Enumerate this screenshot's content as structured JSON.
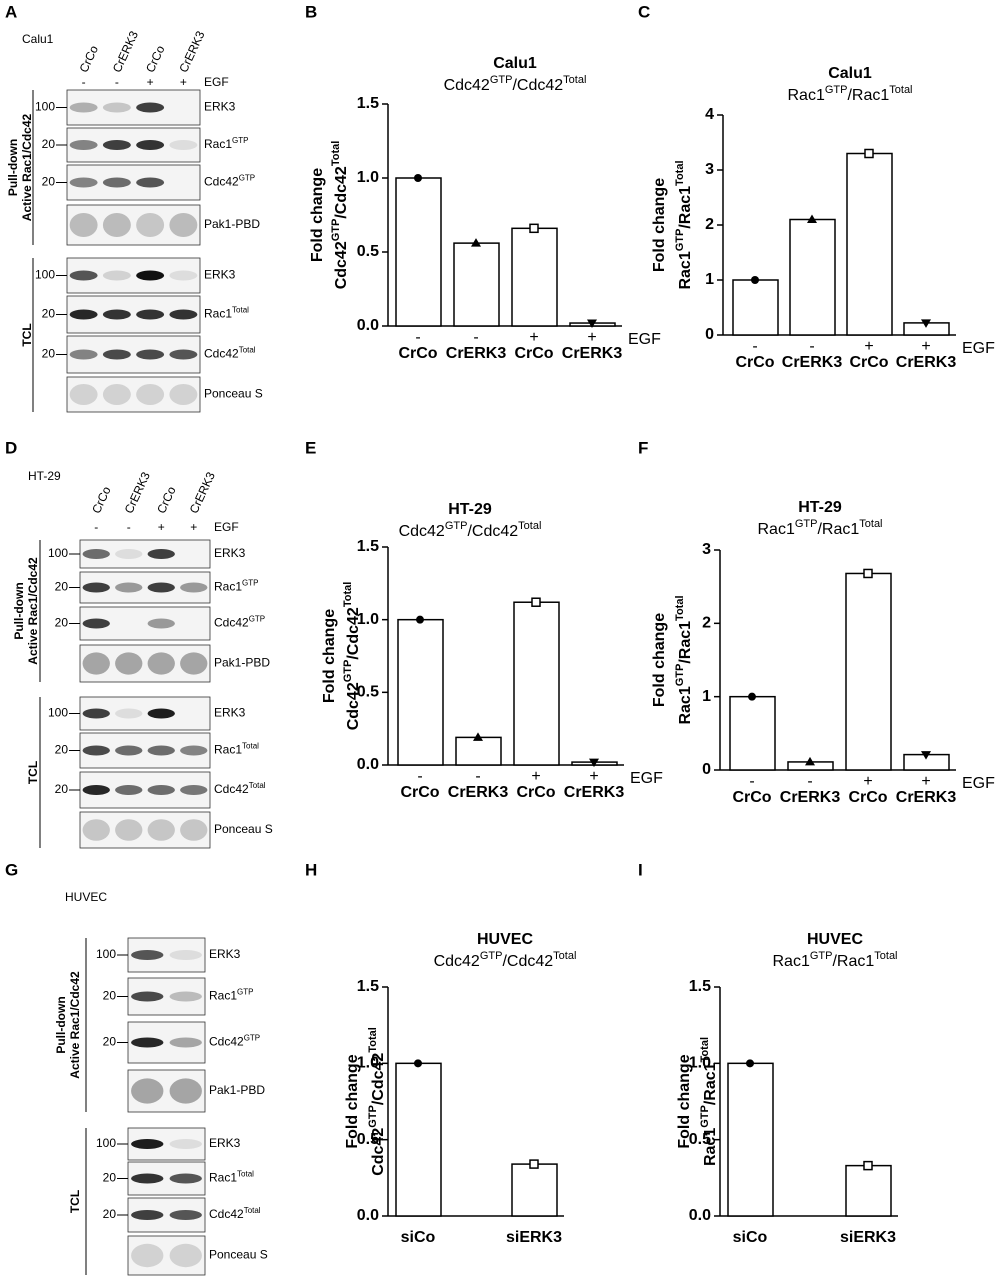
{
  "blots": [
    {
      "panel": "A",
      "cell_line": "Calu1",
      "lanes": [
        "CrCo",
        "CrERK3",
        "CrCo",
        "CrERK3"
      ],
      "signs": [
        "-",
        "-",
        "+",
        "+"
      ],
      "treatment": "EGF",
      "groups": [
        {
          "label": [
            "Pull-down",
            "Active Rac1/Cdc42"
          ]
        },
        {
          "label": [
            "TCL"
          ]
        }
      ],
      "rows": [
        {
          "label": [
            "ERK3"
          ],
          "mw": 100
        },
        {
          "label": [
            "Rac1",
            "GTP"
          ],
          "mw": 20
        },
        {
          "label": [
            "Cdc42",
            "GTP"
          ],
          "mw": 20
        },
        {
          "label": [
            "Pak1-PBD"
          ]
        },
        {
          "label": [
            "ERK3"
          ],
          "mw": 100
        },
        {
          "label": [
            "Rac1",
            "Total"
          ],
          "mw": 20
        },
        {
          "label": [
            "Cdc42",
            "Total"
          ],
          "mw": 20
        },
        {
          "label": [
            "Ponceau S"
          ]
        }
      ]
    },
    {
      "panel": "D",
      "cell_line": "HT-29",
      "lanes": [
        "CrCo",
        "CrERK3",
        "CrCo",
        "CrERK3"
      ],
      "signs": [
        "-",
        "-",
        "+",
        "+"
      ],
      "treatment": "EGF",
      "groups": [
        {
          "label": [
            "Pull-down",
            "Active Rac1/Cdc42"
          ]
        },
        {
          "label": [
            "TCL"
          ]
        }
      ],
      "rows": [
        {
          "label": [
            "ERK3"
          ],
          "mw": 100
        },
        {
          "label": [
            "Rac1",
            "GTP"
          ],
          "mw": 20
        },
        {
          "label": [
            "Cdc42",
            "GTP"
          ],
          "mw": 20
        },
        {
          "label": [
            "Pak1-PBD"
          ]
        },
        {
          "label": [
            "ERK3"
          ],
          "mw": 100
        },
        {
          "label": [
            "Rac1",
            "Total"
          ],
          "mw": 20
        },
        {
          "label": [
            "Cdc42",
            "Total"
          ],
          "mw": 20
        },
        {
          "label": [
            "Ponceau S"
          ]
        }
      ]
    },
    {
      "panel": "G",
      "cell_line": "HUVEC",
      "groups": [
        {
          "label": [
            "Pull-down",
            "Active Rac1/Cdc42"
          ]
        },
        {
          "label": [
            "TCL"
          ]
        }
      ],
      "rows": [
        {
          "label": [
            "ERK3"
          ],
          "mw": 100
        },
        {
          "label": [
            "Rac1",
            "GTP"
          ],
          "mw": 20
        },
        {
          "label": [
            "Cdc42",
            "GTP"
          ],
          "mw": 20
        },
        {
          "label": [
            "Pak1-PBD"
          ]
        },
        {
          "label": [
            "ERK3"
          ],
          "mw": 100
        },
        {
          "label": [
            "Rac1",
            "Total"
          ],
          "mw": 20
        },
        {
          "label": [
            "Cdc42",
            "Total"
          ],
          "mw": 20
        },
        {
          "label": [
            "Ponceau S"
          ]
        }
      ]
    }
  ],
  "chart_data": [
    {
      "type": "bar",
      "panel": "B",
      "title": "Calu1",
      "subtitle": [
        "Cdc42",
        "GTP",
        "/Cdc42",
        "Total"
      ],
      "ylabel": "Fold change",
      "ylabel2": [
        "Cdc42",
        "GTP",
        "/Cdc42",
        "Total"
      ],
      "categories": [
        "CrCo",
        "CrERK3",
        "CrCo",
        "CrERK3"
      ],
      "signs": [
        "-",
        "-",
        "+",
        "+"
      ],
      "treatment": "EGF",
      "values": [
        1.0,
        0.56,
        0.66,
        0.02
      ],
      "markers": [
        "circle",
        "triangle",
        "square",
        "triangle-down"
      ],
      "color": "#ffffff",
      "ylim": [
        0,
        1.5
      ],
      "yticks": [
        {
          "value": 0,
          "label": "0.0"
        },
        0.5,
        {
          "value": 1,
          "label": "1.0"
        },
        1.5
      ]
    },
    {
      "type": "bar",
      "panel": "C",
      "title": "Calu1",
      "subtitle": [
        "Rac1",
        "GTP",
        "/Rac1",
        "Total"
      ],
      "ylabel": "Fold change",
      "ylabel2": [
        "Rac1",
        "GTP",
        "/Rac1",
        "Total"
      ],
      "categories": [
        "CrCo",
        "CrERK3",
        "CrCo",
        "CrERK3"
      ],
      "signs": [
        "-",
        "-",
        "+",
        "+"
      ],
      "treatment": "EGF",
      "values": [
        1.0,
        2.1,
        3.3,
        0.22
      ],
      "markers": [
        "circle",
        "triangle",
        "square",
        "triangle-down"
      ],
      "color": "#ffffff",
      "ylim": [
        0,
        4
      ],
      "yticks": [
        0,
        1,
        2,
        3,
        4
      ]
    },
    {
      "type": "bar",
      "panel": "E",
      "title": "HT-29",
      "subtitle": [
        "Cdc42",
        "GTP",
        "/Cdc42",
        "Total"
      ],
      "ylabel": "Fold change",
      "ylabel2": [
        "Cdc42",
        "GTP",
        "/Cdc42",
        "Total"
      ],
      "categories": [
        "CrCo",
        "CrERK3",
        "CrCo",
        "CrERK3"
      ],
      "signs": [
        "-",
        "-",
        "+",
        "+"
      ],
      "treatment": "EGF",
      "values": [
        1.0,
        0.19,
        1.12,
        0.02
      ],
      "markers": [
        "circle",
        "triangle",
        "square",
        "triangle-down"
      ],
      "color": "#ffffff",
      "ylim": [
        0,
        1.5
      ],
      "yticks": [
        {
          "value": 0,
          "label": "0.0"
        },
        0.5,
        {
          "value": 1,
          "label": "1.0"
        },
        1.5
      ]
    },
    {
      "type": "bar",
      "panel": "F",
      "title": "HT-29",
      "subtitle": [
        "Rac1",
        "GTP",
        "/Rac1",
        "Total"
      ],
      "ylabel": "Fold change",
      "ylabel2": [
        "Rac1",
        "GTP",
        "/Rac1",
        "Total"
      ],
      "categories": [
        "CrCo",
        "CrERK3",
        "CrCo",
        "CrERK3"
      ],
      "signs": [
        "-",
        "-",
        "+",
        "+"
      ],
      "treatment": "EGF",
      "values": [
        1.0,
        0.11,
        2.68,
        0.21
      ],
      "markers": [
        "circle",
        "triangle",
        "square",
        "triangle-down"
      ],
      "color": "#ffffff",
      "ylim": [
        0,
        3
      ],
      "yticks": [
        0,
        1,
        2,
        3
      ]
    },
    {
      "type": "bar",
      "panel": "H",
      "title": "HUVEC",
      "subtitle": [
        "Cdc42",
        "GTP",
        "/Cdc42",
        "Total"
      ],
      "ylabel": "Fold change",
      "ylabel2": [
        "Cdc42",
        "GTP",
        "/Cdc42",
        "Total"
      ],
      "categories": [
        "siCo",
        "siERK3"
      ],
      "values": [
        1.0,
        0.34
      ],
      "markers": [
        "circle",
        "square"
      ],
      "color": "#ffffff",
      "ylim": [
        0,
        1.5
      ],
      "yticks": [
        {
          "value": 0,
          "label": "0.0"
        },
        0.5,
        {
          "value": 1,
          "label": "1.0"
        },
        1.5
      ]
    },
    {
      "type": "bar",
      "panel": "I",
      "title": "HUVEC",
      "subtitle": [
        "Rac1",
        "GTP",
        "/Rac1",
        "Total"
      ],
      "ylabel": "Fold change",
      "ylabel2": [
        "Rac1",
        "GTP",
        "/Rac1",
        "Total"
      ],
      "categories": [
        "siCo",
        "siERK3"
      ],
      "values": [
        1.0,
        0.33
      ],
      "markers": [
        "circle",
        "square"
      ],
      "color": "#ffffff",
      "ylim": [
        0,
        1.5
      ],
      "yticks": [
        {
          "value": 0,
          "label": "0.0"
        },
        0.5,
        {
          "value": 1,
          "label": "1.0"
        },
        1.5
      ]
    }
  ]
}
